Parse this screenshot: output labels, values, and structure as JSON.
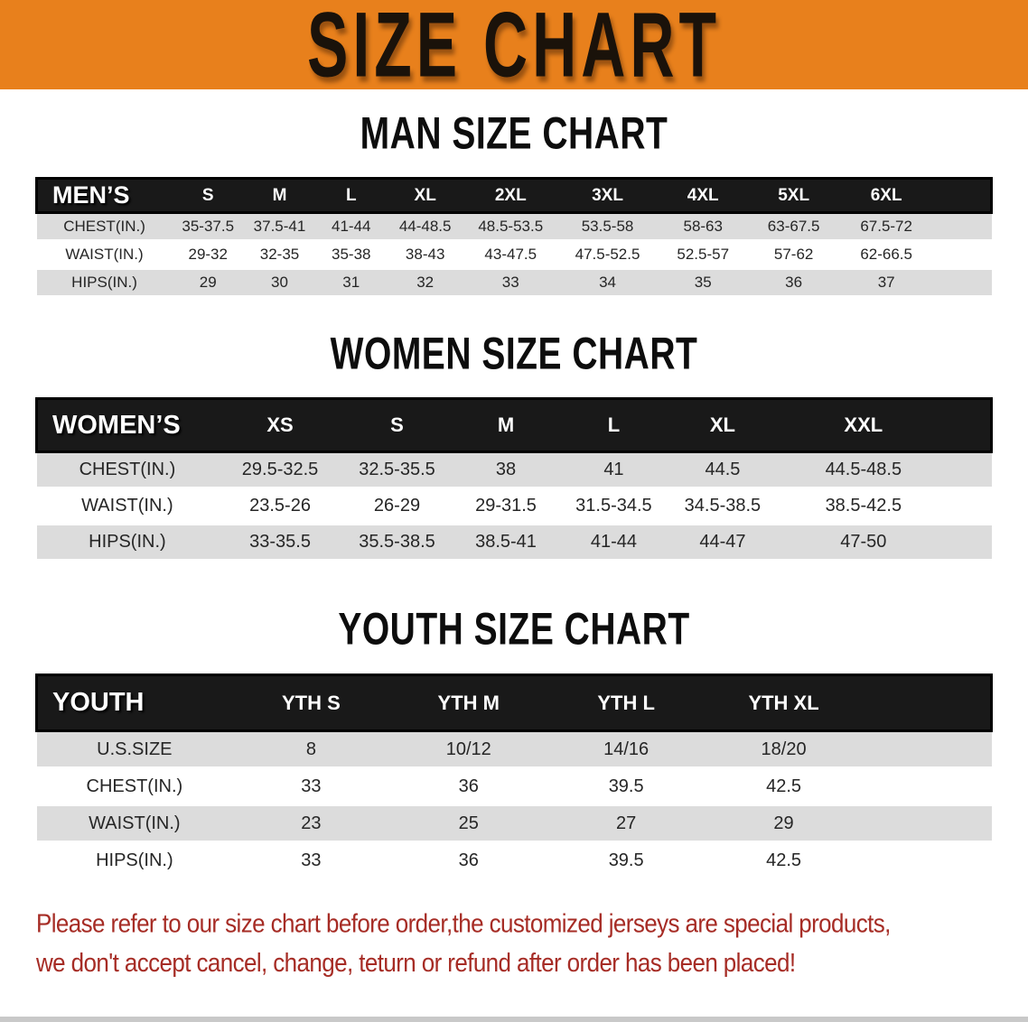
{
  "banner": {
    "title": "SIZE CHART"
  },
  "colors": {
    "banner_orange": "#E8801C",
    "header_band_black": "#191919",
    "row_gray": "#DCDCDC",
    "row_white": "#FFFFFF",
    "note_red": "#A62C25"
  },
  "sections": {
    "men": {
      "heading": "MAN SIZE CHART",
      "table": {
        "group_label": "MEN’S",
        "size_headers": [
          "S",
          "M",
          "L",
          "XL",
          "2XL",
          "3XL",
          "4XL",
          "5XL",
          "6XL"
        ],
        "rows": [
          {
            "label": "CHEST(IN.)",
            "values": [
              "35-37.5",
              "37.5-41",
              "41-44",
              "44-48.5",
              "48.5-53.5",
              "53.5-58",
              "58-63",
              "63-67.5",
              "67.5-72"
            ]
          },
          {
            "label": "WAIST(IN.)",
            "values": [
              "29-32",
              "32-35",
              "35-38",
              "38-43",
              "43-47.5",
              "47.5-52.5",
              "52.5-57",
              "57-62",
              "62-66.5"
            ]
          },
          {
            "label": "HIPS(IN.)",
            "values": [
              "29",
              "30",
              "31",
              "32",
              "33",
              "34",
              "35",
              "36",
              "37"
            ]
          }
        ]
      }
    },
    "women": {
      "heading": "WOMEN SIZE CHART",
      "table": {
        "group_label": "WOMEN’S",
        "size_headers": [
          "XS",
          "S",
          "M",
          "L",
          "XL",
          "XXL"
        ],
        "rows": [
          {
            "label": "CHEST(IN.)",
            "values": [
              "29.5-32.5",
              "32.5-35.5",
              "38",
              "41",
              "44.5",
              "44.5-48.5"
            ]
          },
          {
            "label": "WAIST(IN.)",
            "values": [
              "23.5-26",
              "26-29",
              "29-31.5",
              "31.5-34.5",
              "34.5-38.5",
              "38.5-42.5"
            ]
          },
          {
            "label": "HIPS(IN.)",
            "values": [
              "33-35.5",
              "35.5-38.5",
              "38.5-41",
              "41-44",
              "44-47",
              "47-50"
            ]
          }
        ]
      }
    },
    "youth": {
      "heading": "YOUTH SIZE CHART",
      "table": {
        "group_label": "YOUTH",
        "size_headers": [
          "YTH S",
          "YTH M",
          "YTH L",
          "YTH XL"
        ],
        "rows": [
          {
            "label": "U.S.SIZE",
            "values": [
              "8",
              "10/12",
              "14/16",
              "18/20"
            ]
          },
          {
            "label": "CHEST(IN.)",
            "values": [
              "33",
              "36",
              "39.5",
              "42.5"
            ]
          },
          {
            "label": "WAIST(IN.)",
            "values": [
              "23",
              "25",
              "27",
              "29"
            ]
          },
          {
            "label": "HIPS(IN.)",
            "values": [
              "33",
              "36",
              "39.5",
              "42.5"
            ]
          }
        ]
      }
    }
  },
  "note": {
    "line1": "Please refer to our size chart before order,the customized jerseys are special products,",
    "line2": "we don't accept cancel, change, teturn or refund after order has been placed!"
  }
}
